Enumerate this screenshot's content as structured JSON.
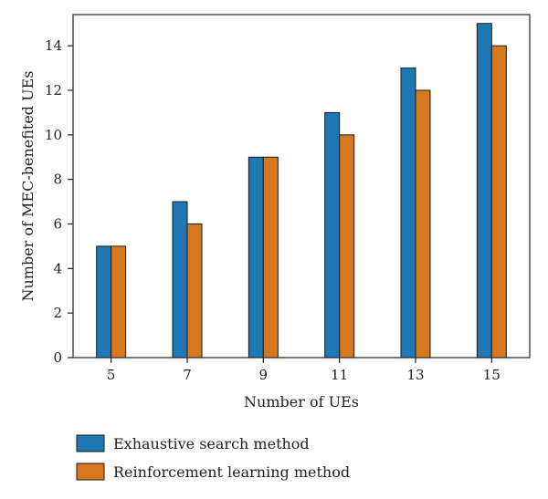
{
  "chart_data": {
    "type": "bar",
    "title": "",
    "xlabel": "Number of UEs",
    "ylabel": "Number of MEC-benefited UEs",
    "categories": [
      "5",
      "7",
      "9",
      "11",
      "13",
      "15"
    ],
    "ylim": [
      0,
      15.4
    ],
    "yticks": [
      0,
      2,
      4,
      6,
      8,
      10,
      12,
      14
    ],
    "grid": false,
    "legend_position": "bottom-left",
    "series": [
      {
        "name": "Exhaustive search method",
        "color": "#1f77b4",
        "values": [
          5,
          7,
          9,
          11,
          13,
          15
        ]
      },
      {
        "name": "Reinforcement learning method",
        "color": "#d8781e",
        "values": [
          5,
          6,
          9,
          10,
          12,
          14
        ]
      }
    ]
  }
}
